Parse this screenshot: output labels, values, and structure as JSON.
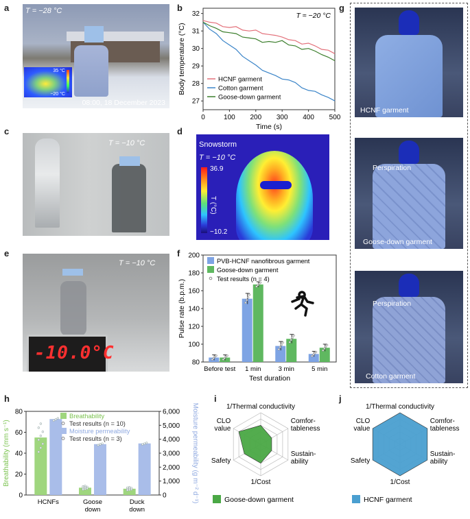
{
  "panels": {
    "a": {
      "label": "a",
      "temp": "T = −28 °C",
      "thermal_high": "35 °C",
      "thermal_low": "−20 °C",
      "timestamp": "08:00, 18 December 2023"
    },
    "b": {
      "label": "b"
    },
    "c": {
      "label": "c",
      "temp": "T = −10 °C"
    },
    "d": {
      "label": "d",
      "title": "Snowstorm",
      "temp": "T = −10 °C",
      "scale_max": "36.9",
      "scale_min": "−10.2",
      "scale_label": "T (°C)"
    },
    "e": {
      "label": "e",
      "temp": "T = −10 °C",
      "display": "-10.0°C"
    },
    "f": {
      "label": "f"
    },
    "g": {
      "label": "g",
      "captions": [
        "HCNF garment",
        "Perspiration",
        "Goose-down garment",
        "Perspiration",
        "Cotton garment"
      ]
    },
    "h": {
      "label": "h"
    },
    "i": {
      "label": "i"
    },
    "j": {
      "label": "j"
    }
  },
  "chart_data": [
    {
      "id": "b",
      "type": "line",
      "annotation": "T ≈ −20 °C",
      "xlabel": "Time (s)",
      "ylabel": "Body temperature (°C)",
      "xlim": [
        0,
        500
      ],
      "ylim": [
        26.5,
        32.3
      ],
      "xticks": [
        0,
        100,
        200,
        300,
        400,
        500
      ],
      "yticks": [
        27,
        28,
        29,
        30,
        31,
        32
      ],
      "legend_position": "bottom-left",
      "series": [
        {
          "name": "HCNF garment",
          "color": "#e3707a",
          "x": [
            0,
            25,
            50,
            75,
            100,
            125,
            150,
            175,
            200,
            225,
            250,
            275,
            300,
            325,
            350,
            375,
            400,
            425,
            450,
            475,
            500
          ],
          "y": [
            31.6,
            31.5,
            31.4,
            31.3,
            31.2,
            31.2,
            31.1,
            31.0,
            31.0,
            30.9,
            30.8,
            30.7,
            30.7,
            30.5,
            30.4,
            30.3,
            30.3,
            30.1,
            30.0,
            29.9,
            29.7
          ]
        },
        {
          "name": "Cotton garment",
          "color": "#3a84c8",
          "x": [
            0,
            25,
            50,
            75,
            100,
            125,
            150,
            175,
            200,
            225,
            250,
            275,
            300,
            325,
            350,
            375,
            400,
            425,
            450,
            475,
            500
          ],
          "y": [
            31.5,
            31.1,
            30.8,
            30.5,
            30.2,
            29.9,
            29.6,
            29.3,
            29.0,
            28.8,
            28.6,
            28.4,
            28.3,
            28.2,
            28.0,
            27.8,
            27.6,
            27.5,
            27.4,
            27.2,
            27.0
          ]
        },
        {
          "name": "Goose-down garment",
          "color": "#3a7d2a",
          "x": [
            0,
            25,
            50,
            75,
            100,
            125,
            150,
            175,
            200,
            225,
            250,
            275,
            300,
            325,
            350,
            375,
            400,
            425,
            450,
            475,
            500
          ],
          "y": [
            31.5,
            31.3,
            31.1,
            31.0,
            30.9,
            30.8,
            30.7,
            30.6,
            30.5,
            30.4,
            30.4,
            30.3,
            30.5,
            30.2,
            30.1,
            30.0,
            30.0,
            29.8,
            29.7,
            29.5,
            29.3
          ]
        }
      ]
    },
    {
      "id": "f",
      "type": "bar",
      "xlabel": "Test duration",
      "ylabel": "Pulse rate (b.p.m.)",
      "categories": [
        "Before test",
        "1 min",
        "3 min",
        "5 min"
      ],
      "ylim": [
        80,
        200
      ],
      "yticks": [
        80,
        100,
        120,
        140,
        160,
        180,
        200
      ],
      "legend": [
        "PVB-HCNF nanofibrous garment",
        "Goose-down garment",
        "Test results (n = 4)"
      ],
      "series": [
        {
          "name": "PVB-HCNF nanofibrous garment",
          "color": "#7ea4e4",
          "values": [
            85,
            151,
            98,
            89
          ],
          "err": [
            3,
            6,
            5,
            3
          ]
        },
        {
          "name": "Goose-down garment",
          "color": "#5fb860",
          "values": [
            85,
            167,
            106,
            96
          ],
          "err": [
            3,
            3,
            5,
            4
          ]
        }
      ]
    },
    {
      "id": "h",
      "type": "bar",
      "xlabel": "",
      "ylabel": "Breathability (mm s⁻¹)",
      "ylabel_right": "Moisture permeability (g m⁻² d⁻¹)",
      "categories": [
        "HCNFs",
        "Goose down",
        "Duck down"
      ],
      "category_lines": [
        [
          "HCNFs"
        ],
        [
          "Goose",
          "down"
        ],
        [
          "Duck",
          "down"
        ]
      ],
      "ylim": [
        0,
        80
      ],
      "yticks": [
        0,
        20,
        40,
        60,
        80
      ],
      "ylim_right": [
        0,
        6000
      ],
      "yticks_right": [
        0,
        1000,
        2000,
        3000,
        4000,
        5000,
        6000
      ],
      "legend": [
        "Breathability",
        "Test results (n = 10)",
        "Moisture permeability",
        "Test results (n = 3)"
      ],
      "series": [
        {
          "name": "Breathability",
          "color": "#9fd67e",
          "axis": "left",
          "values": [
            55,
            7,
            6
          ]
        },
        {
          "name": "Moisture permeability",
          "color": "#a9bde9",
          "axis": "right",
          "values": [
            5450,
            3650,
            3700
          ]
        }
      ]
    },
    {
      "id": "i",
      "type": "radar",
      "axes": [
        "1/Thermal conductivity",
        "Comfor-tableness",
        "Sustain-ability",
        "1/Cost",
        "Safety",
        "CLO value"
      ],
      "axis_lines": [
        [
          "1/Thermal conductivity"
        ],
        [
          "Comfor-",
          "tableness"
        ],
        [
          "Sustain-",
          "ability"
        ],
        [
          "1/Cost"
        ],
        [
          "Safety"
        ],
        [
          "CLO",
          "value"
        ]
      ],
      "max": 5,
      "series": [
        {
          "name": "Goose-down garment",
          "color": "#4aa845",
          "values": [
            3,
            2,
            2,
            3,
            3,
            4
          ]
        }
      ]
    },
    {
      "id": "j",
      "type": "radar",
      "axes": [
        "1/Thermal conductivity",
        "Comfor-tableness",
        "Sustain-ability",
        "1/Cost",
        "Safety",
        "CLO value"
      ],
      "axis_lines": [
        [
          "1/Thermal conductivity"
        ],
        [
          "Comfor-",
          "tableness"
        ],
        [
          "Sustain-",
          "ability"
        ],
        [
          "1/Cost"
        ],
        [
          "Safety"
        ],
        [
          "CLO",
          "value"
        ]
      ],
      "max": 5,
      "series": [
        {
          "name": "HCNF garment",
          "color": "#4a9fd0",
          "values": [
            5,
            5,
            5,
            5,
            5,
            5
          ]
        }
      ]
    }
  ],
  "colors": {
    "thermal_hot": "#e83a1f",
    "thermal_cold": "#1f2ad8"
  }
}
